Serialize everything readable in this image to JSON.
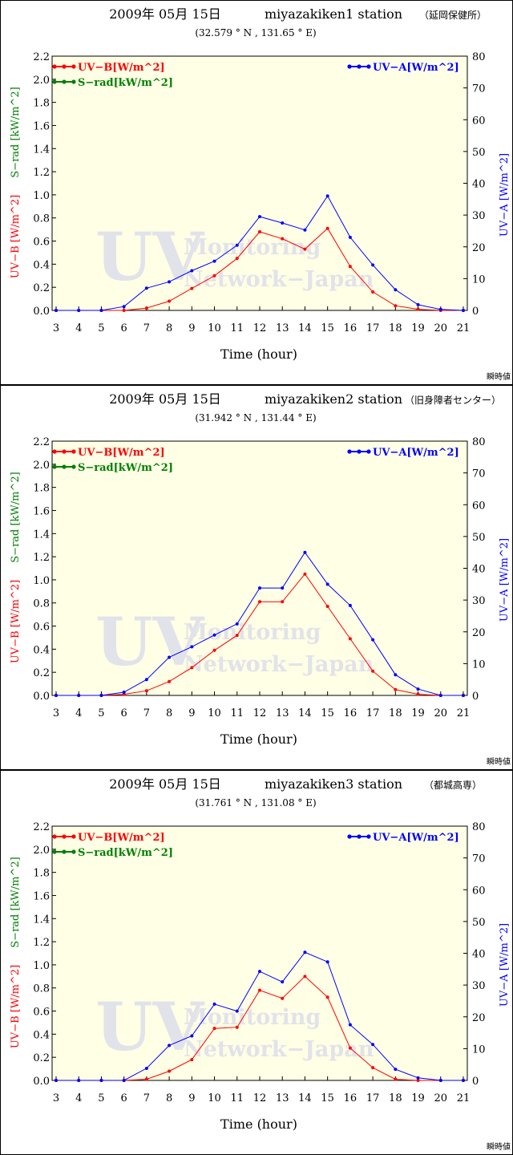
{
  "common": {
    "date": "2009年 05月 15日",
    "xlabel": "Time (hour)",
    "left_axis_label": "UV−B [W/m^2]",
    "sad_axis_label": "S−rad [kW/m^2]",
    "right_axis_label": "UV−A [W/m^2]",
    "legend_uvb": "UV−B[W/m^2]",
    "legend_srad": "S−rad[kW/m^2]",
    "legend_uva": "UV−A[W/m^2]",
    "watermark_uv": "UV",
    "watermark_line1": "Monitoring",
    "watermark_line2": "Network−Japan",
    "footer": "瞬時値",
    "colors": {
      "uvb": "#ff0000",
      "uva": "#0000ff",
      "srad": "#008000",
      "plot_bg": "#ffffe6"
    }
  },
  "chart_data": [
    {
      "type": "line",
      "station": "miyazakiken1 station",
      "station_jp": "（延岡保健所）",
      "coords": "(32.579 ° N ,  131.65 ° E)",
      "x": [
        3,
        4,
        5,
        6,
        7,
        8,
        9,
        10,
        11,
        12,
        13,
        14,
        15,
        16,
        17,
        18,
        19,
        20,
        21
      ],
      "left_ylim": [
        0,
        2.2
      ],
      "left_ticks": [
        0,
        0.2,
        0.4,
        0.6,
        0.8,
        1.0,
        1.2,
        1.4,
        1.6,
        1.8,
        2.0,
        2.2
      ],
      "right_ylim": [
        0,
        80
      ],
      "right_ticks": [
        0,
        10,
        20,
        30,
        40,
        50,
        60,
        70,
        80
      ],
      "series": [
        {
          "name": "UV−B[W/m^2]",
          "axis": "left",
          "values": [
            0,
            0,
            0,
            0,
            0.02,
            0.08,
            0.19,
            0.3,
            0.45,
            0.68,
            0.62,
            0.53,
            0.71,
            0.38,
            0.16,
            0.04,
            0.01,
            0,
            0
          ]
        },
        {
          "name": "UV−A[W/m^2]",
          "axis": "right",
          "values": [
            0,
            0,
            0,
            1.2,
            7,
            9,
            12.5,
            15.5,
            20.5,
            29.5,
            27.5,
            25.3,
            36,
            23,
            14.3,
            6.5,
            1.8,
            0.3,
            0
          ]
        }
      ]
    },
    {
      "type": "line",
      "station": "miyazakiken2 station",
      "station_jp": "（旧身障者センター）",
      "coords": "(31.942 ° N ,  131.44 ° E)",
      "x": [
        3,
        4,
        5,
        6,
        7,
        8,
        9,
        10,
        11,
        12,
        13,
        14,
        15,
        16,
        17,
        18,
        19,
        20,
        21
      ],
      "left_ylim": [
        0,
        2.2
      ],
      "left_ticks": [
        0,
        0.2,
        0.4,
        0.6,
        0.8,
        1.0,
        1.2,
        1.4,
        1.6,
        1.8,
        2.0,
        2.2
      ],
      "right_ylim": [
        0,
        80
      ],
      "right_ticks": [
        0,
        10,
        20,
        30,
        40,
        50,
        60,
        70,
        80
      ],
      "series": [
        {
          "name": "UV−B[W/m^2]",
          "axis": "left",
          "values": [
            0,
            0,
            0,
            0.01,
            0.04,
            0.12,
            0.24,
            0.39,
            0.52,
            0.81,
            0.81,
            1.05,
            0.77,
            0.49,
            0.21,
            0.05,
            0.01,
            0,
            0
          ]
        },
        {
          "name": "UV−A[W/m^2]",
          "axis": "right",
          "values": [
            0,
            0,
            0,
            1,
            5,
            12,
            15.3,
            19,
            22.5,
            33.8,
            33.8,
            45,
            35,
            28.3,
            17.5,
            6.5,
            2,
            0,
            0
          ]
        }
      ]
    },
    {
      "type": "line",
      "station": "miyazakiken3 station",
      "station_jp": "（都城高専）",
      "coords": "(31.761 ° N ,  131.08 ° E)",
      "x": [
        3,
        4,
        5,
        6,
        7,
        8,
        9,
        10,
        11,
        12,
        13,
        14,
        15,
        16,
        17,
        18,
        19,
        20,
        21
      ],
      "left_ylim": [
        0,
        2.2
      ],
      "left_ticks": [
        0,
        0.2,
        0.4,
        0.6,
        0.8,
        1.0,
        1.2,
        1.4,
        1.6,
        1.8,
        2.0,
        2.2
      ],
      "right_ylim": [
        0,
        80
      ],
      "right_ticks": [
        0,
        10,
        20,
        30,
        40,
        50,
        60,
        70,
        80
      ],
      "series": [
        {
          "name": "UV−B[W/m^2]",
          "axis": "left",
          "values": [
            0,
            0,
            0,
            0,
            0.01,
            0.08,
            0.18,
            0.45,
            0.46,
            0.78,
            0.71,
            0.9,
            0.72,
            0.28,
            0.11,
            0.01,
            0,
            0,
            0
          ]
        },
        {
          "name": "UV−A[W/m^2]",
          "axis": "right",
          "values": [
            0,
            0,
            0,
            0,
            3.8,
            11,
            14,
            24,
            21.8,
            34.3,
            31,
            40.3,
            37.3,
            17.5,
            11.3,
            3.5,
            0.8,
            0,
            0
          ]
        }
      ]
    }
  ]
}
